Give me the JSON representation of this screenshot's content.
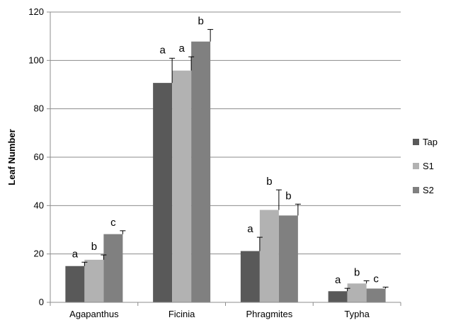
{
  "chart_data": {
    "type": "bar",
    "title": "",
    "xlabel": "",
    "ylabel": "Leaf Number",
    "ylim": [
      0,
      120
    ],
    "yticks": [
      0,
      20,
      40,
      60,
      80,
      100,
      120
    ],
    "grid": true,
    "legend_position": "right",
    "categories": [
      "Agapanthus",
      "Ficinia",
      "Phragmites",
      "Typha"
    ],
    "series": [
      {
        "name": "Tap",
        "color": "#595959",
        "values": [
          15.0,
          90.7,
          21.2,
          4.6
        ],
        "errors": [
          1.6,
          10.2,
          5.7,
          1.2
        ],
        "labels": [
          "a",
          "a",
          "a",
          "a"
        ]
      },
      {
        "name": "S1",
        "color": "#b2b2b2",
        "values": [
          17.6,
          95.8,
          38.2,
          7.8
        ],
        "errors": [
          2.0,
          5.7,
          8.3,
          1.1
        ],
        "labels": [
          "b",
          "a",
          "b",
          "b"
        ]
      },
      {
        "name": "S2",
        "color": "#808080",
        "values": [
          28.2,
          107.8,
          35.9,
          5.7
        ],
        "errors": [
          1.4,
          5.0,
          4.7,
          0.6
        ],
        "labels": [
          "c",
          "b",
          "b",
          "c"
        ]
      }
    ]
  }
}
